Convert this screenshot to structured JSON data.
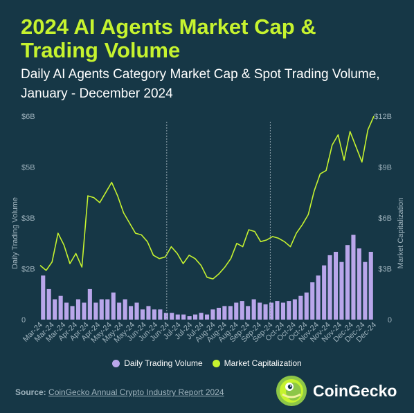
{
  "header": {
    "title": "2024 AI Agents Market Cap & Trading Volume",
    "subtitle": "Daily AI Agents Category Market Cap & Spot Trading Volume, January - December 2024"
  },
  "legend": {
    "volume_label": "Daily Trading Volume",
    "cap_label": "Market Capitalization"
  },
  "footer": {
    "source_label": "Source:",
    "source_text": "CoinGecko Annual Crypto Industry Report 2024",
    "brand": "CoinGecko"
  },
  "colors": {
    "background": "#163746",
    "title": "#c6f32f",
    "market_cap_line": "#c6f32f",
    "volume_bars": "#b9a6ea",
    "axis_text": "#9fb3bd",
    "divider": "#8fa3ad"
  },
  "chart_data": {
    "type": "line+bar",
    "xlabel": "",
    "y_left_label": "Daily Trading Volume",
    "y_right_label": "Market Capitalization",
    "y_left_ticks": [
      "0",
      "$2B",
      "$3B",
      "$5B",
      "$6B"
    ],
    "y_left_tick_values": [
      0,
      1.5,
      3,
      4.5,
      6
    ],
    "y_right_ticks": [
      "0",
      "$3B",
      "$6B",
      "$9B",
      "$12B"
    ],
    "y_right_tick_values": [
      0,
      3,
      6,
      9,
      12
    ],
    "y_left_range_billions": [
      0,
      6
    ],
    "y_right_range_billions": [
      0,
      12
    ],
    "x_tick_labels": [
      "Mar-24",
      "Mar-24",
      "Mar-24",
      "Apr-24",
      "Apr-24",
      "Apr-24",
      "May-24",
      "May-24",
      "May-24",
      "Jun-24",
      "Jun-24",
      "Jun-24",
      "Jul-24",
      "Jul-24",
      "Jul-24",
      "Aug-24",
      "Aug-24",
      "Aug-24",
      "Sep-24",
      "Sep-24",
      "Sep-24",
      "Oct-24",
      "Oct-24",
      "Oct-24",
      "Nov-24",
      "Nov-24",
      "Nov-24",
      "Dec-24",
      "Dec-24",
      "Dec-24"
    ],
    "dividers_at_index": [
      11,
      20
    ],
    "grid": false,
    "legend_position": "bottom",
    "series": [
      {
        "name": "Market Capitalization",
        "type": "line",
        "axis": "right",
        "values": [
          3.2,
          2.9,
          3.4,
          5.1,
          4.4,
          3.3,
          3.9,
          3.1,
          7.3,
          7.2,
          6.9,
          7.5,
          8.1,
          7.3,
          6.3,
          5.7,
          5.1,
          5.0,
          4.6,
          3.8,
          3.6,
          3.7,
          4.3,
          3.9,
          3.3,
          3.8,
          3.6,
          3.2,
          2.5,
          2.4,
          2.7,
          3.1,
          3.6,
          4.5,
          4.3,
          5.3,
          5.2,
          4.6,
          4.7,
          4.9,
          4.8,
          4.6,
          4.3,
          5.1,
          5.6,
          6.2,
          7.6,
          8.6,
          8.8,
          10.3,
          10.9,
          9.4,
          11.1,
          10.2,
          9.3,
          11.2,
          12.0
        ]
      },
      {
        "name": "Daily Trading Volume",
        "type": "bar",
        "axis": "left",
        "values": [
          1.3,
          0.9,
          0.6,
          0.7,
          0.5,
          0.4,
          0.6,
          0.5,
          0.9,
          0.5,
          0.6,
          0.6,
          0.8,
          0.5,
          0.6,
          0.4,
          0.5,
          0.3,
          0.4,
          0.3,
          0.3,
          0.2,
          0.2,
          0.15,
          0.15,
          0.1,
          0.15,
          0.2,
          0.15,
          0.3,
          0.35,
          0.4,
          0.4,
          0.5,
          0.55,
          0.4,
          0.6,
          0.5,
          0.45,
          0.5,
          0.55,
          0.5,
          0.55,
          0.6,
          0.7,
          0.8,
          1.1,
          1.3,
          1.6,
          1.9,
          2.0,
          1.7,
          2.2,
          2.5,
          2.1,
          1.7,
          2.0
        ]
      }
    ]
  }
}
